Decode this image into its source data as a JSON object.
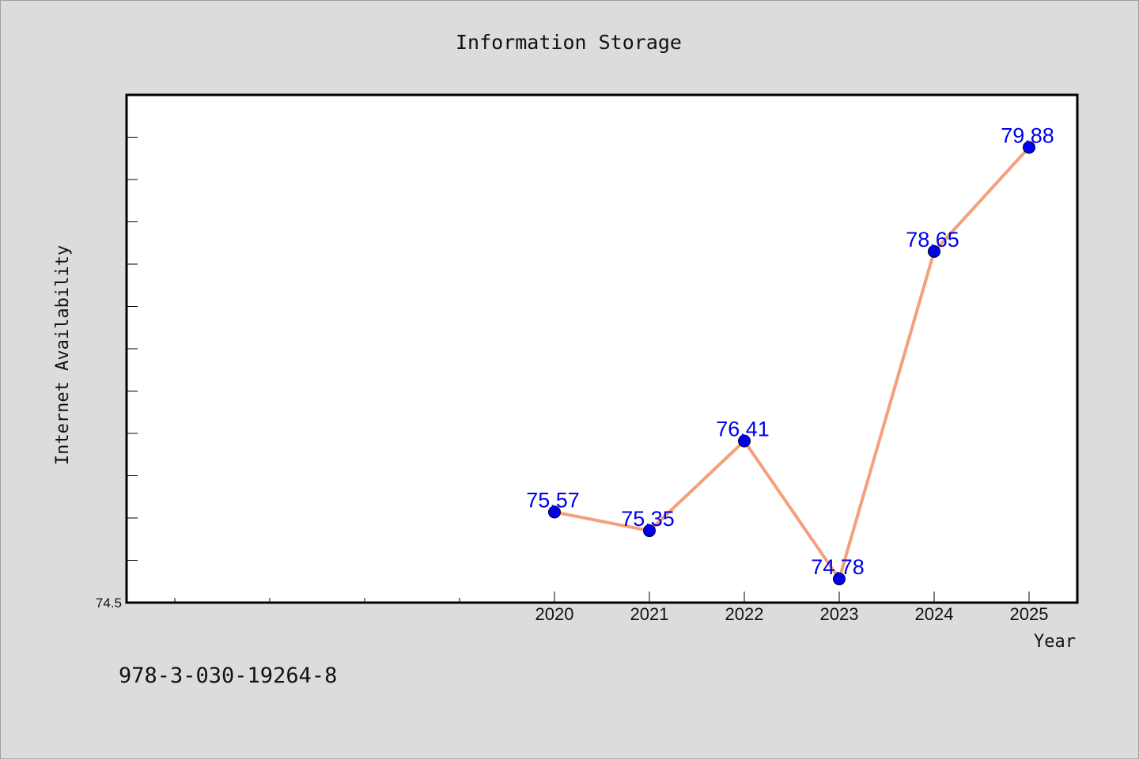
{
  "chart_data": {
    "type": "line",
    "title": "Information Storage",
    "xlabel": "Year",
    "ylabel": "Internet Availability",
    "x": [
      "2020",
      "2021",
      "2022",
      "2023",
      "2024",
      "2025"
    ],
    "series": [
      {
        "values": [
          75.57,
          75.35,
          76.41,
          74.78,
          78.65,
          79.88
        ]
      }
    ],
    "data_labels": [
      "75.57",
      "75.35",
      "76.41",
      "74.78",
      "78.65",
      "79.88"
    ],
    "ylim": [
      74.5,
      80.5
    ],
    "y_tick_labels": [
      "74.5"
    ],
    "grid": false,
    "line_color": "#f4a07a",
    "marker_color": "#0000ee",
    "label_color": "#0000ee"
  },
  "footnote": "978-3-030-19264-8"
}
